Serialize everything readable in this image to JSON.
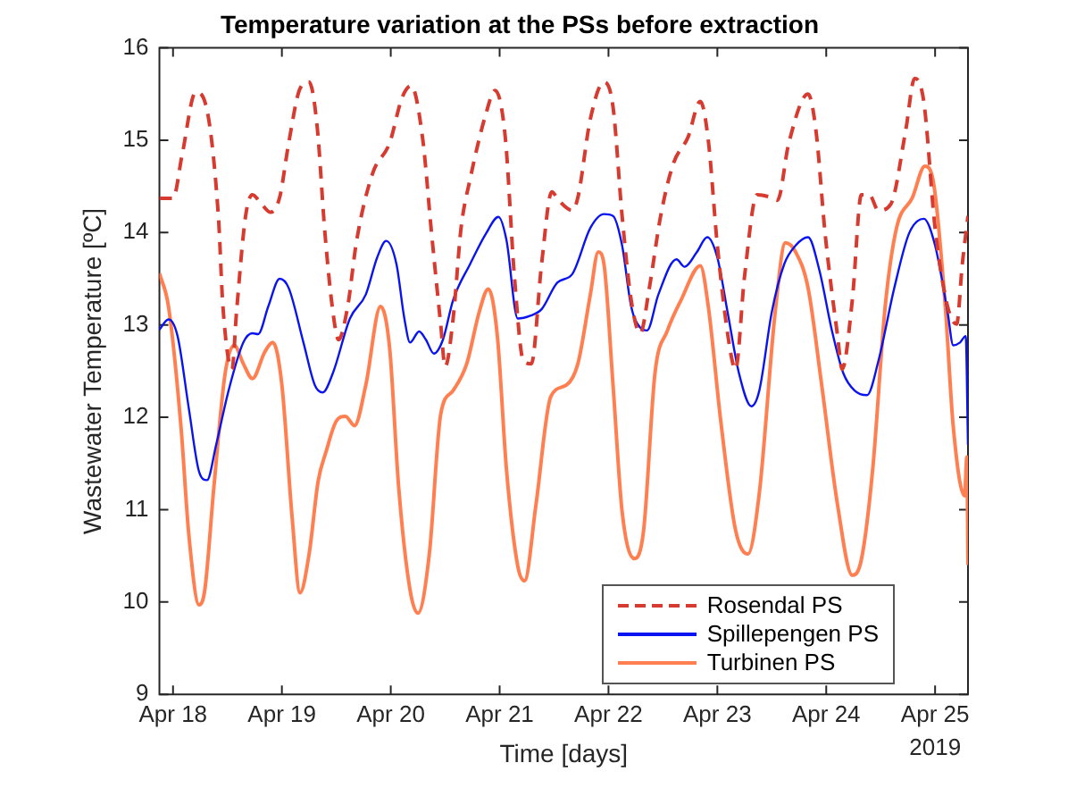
{
  "chart_data": {
    "type": "line",
    "title": "Temperature variation at the PSs before extraction",
    "xlabel": "Time [days]",
    "ylabel": "Wastewater Temperature [ºC]",
    "annotations": [
      "2019"
    ],
    "xlim": [
      "2019-04-17T21:00",
      "2019-04-25T07:15"
    ],
    "xticks": [
      {
        "value": "2019-04-18",
        "label": "Apr 18"
      },
      {
        "value": "2019-04-19",
        "label": "Apr 19"
      },
      {
        "value": "2019-04-20",
        "label": "Apr 20"
      },
      {
        "value": "2019-04-21",
        "label": "Apr 21"
      },
      {
        "value": "2019-04-22",
        "label": "Apr 22"
      },
      {
        "value": "2019-04-23",
        "label": "Apr 23"
      },
      {
        "value": "2019-04-24",
        "label": "Apr 24"
      },
      {
        "value": "2019-04-25",
        "label": "Apr 25"
      }
    ],
    "ylim": [
      9,
      16
    ],
    "yticks": [
      9,
      10,
      11,
      12,
      13,
      14,
      15,
      16
    ],
    "grid": false,
    "legend": "bottom right",
    "marker": "none",
    "series": [
      {
        "name": "Rosendal PS",
        "color": "#d73a2f",
        "line_style": "dashed",
        "x": [
          "2019-04-17T21:00",
          "2019-04-18T00:00",
          "2019-04-18T02:00",
          "2019-04-18T05:00",
          "2019-04-18T07:00",
          "2019-04-18T10:00",
          "2019-04-18T11:00",
          "2019-04-18T13:00",
          "2019-04-18T14:00",
          "2019-04-18T16:00",
          "2019-04-18T17:30",
          "2019-04-18T19:30",
          "2019-04-18T21:30",
          "2019-04-18T23:30",
          "2019-04-19T01:30",
          "2019-04-19T04:00",
          "2019-04-19T06:00",
          "2019-04-19T07:45",
          "2019-04-19T09:30",
          "2019-04-19T11:15",
          "2019-04-19T12:30",
          "2019-04-19T14:30",
          "2019-04-19T16:30",
          "2019-04-19T20:00",
          "2019-04-19T23:45",
          "2019-04-20T02:30",
          "2019-04-20T04:30",
          "2019-04-20T07:00",
          "2019-04-20T09:00",
          "2019-04-20T11:00",
          "2019-04-20T12:00",
          "2019-04-20T13:45",
          "2019-04-20T15:30",
          "2019-04-20T17:30",
          "2019-04-20T21:00",
          "2019-04-20T23:00",
          "2019-04-21T01:15",
          "2019-04-21T03:15",
          "2019-04-21T05:15",
          "2019-04-21T07:00",
          "2019-04-21T09:15",
          "2019-04-21T11:30",
          "2019-04-21T13:00",
          "2019-04-21T16:00",
          "2019-04-21T17:15",
          "2019-04-21T20:00",
          "2019-04-21T23:00",
          "2019-04-22T01:00",
          "2019-04-22T03:00",
          "2019-04-22T05:00",
          "2019-04-22T07:00",
          "2019-04-22T09:00",
          "2019-04-22T11:30",
          "2019-04-22T14:15",
          "2019-04-22T17:30",
          "2019-04-22T20:15",
          "2019-04-22T22:00",
          "2019-04-23T00:00",
          "2019-04-23T02:45",
          "2019-04-23T04:00",
          "2019-04-23T06:00",
          "2019-04-23T08:45",
          "2019-04-23T11:15",
          "2019-04-23T13:15",
          "2019-04-23T15:45",
          "2019-04-23T20:00",
          "2019-04-23T21:45",
          "2019-04-23T23:45",
          "2019-04-24T02:30",
          "2019-04-24T03:30",
          "2019-04-24T05:45",
          "2019-04-24T07:45",
          "2019-04-24T09:30",
          "2019-04-24T11:30",
          "2019-04-24T14:15",
          "2019-04-24T17:30",
          "2019-04-24T19:30",
          "2019-04-24T21:30",
          "2019-04-25T00:00",
          "2019-04-25T02:45",
          "2019-04-25T04:45",
          "2019-04-25T06:00",
          "2019-04-25T07:15"
        ],
        "values": [
          14.37,
          14.37,
          14.84,
          15.52,
          15.42,
          14.18,
          13.2,
          12.52,
          13.14,
          14.18,
          14.41,
          14.31,
          14.22,
          14.38,
          14.97,
          15.56,
          15.63,
          15.16,
          13.99,
          13.14,
          12.84,
          13.2,
          13.92,
          14.64,
          14.97,
          15.46,
          15.59,
          15.03,
          13.99,
          13.01,
          12.55,
          13.07,
          14.05,
          14.58,
          15.29,
          15.54,
          15.03,
          13.53,
          12.61,
          12.58,
          13.66,
          14.44,
          14.35,
          14.24,
          14.38,
          15.23,
          15.63,
          15.36,
          14.18,
          13.27,
          12.91,
          13.4,
          14.18,
          14.74,
          15.03,
          15.42,
          15.0,
          13.86,
          12.75,
          12.52,
          13.53,
          14.41,
          14.39,
          14.35,
          14.97,
          15.5,
          15.1,
          13.99,
          12.88,
          12.52,
          13.27,
          14.41,
          14.41,
          14.24,
          14.31,
          15.1,
          15.67,
          15.42,
          14.05,
          13.2,
          13.01,
          13.66,
          14.18
        ]
      },
      {
        "name": "Spillepengen PS",
        "color": "#0a14f0",
        "line_style": "solid",
        "x": [
          "2019-04-17T21:00",
          "2019-04-17T23:00",
          "2019-04-18T01:00",
          "2019-04-18T03:30",
          "2019-04-18T05:45",
          "2019-04-18T07:30",
          "2019-04-18T09:30",
          "2019-04-18T12:15",
          "2019-04-18T15:30",
          "2019-04-18T17:30",
          "2019-04-18T18:45",
          "2019-04-18T21:00",
          "2019-04-18T23:30",
          "2019-04-19T01:30",
          "2019-04-19T04:45",
          "2019-04-19T07:15",
          "2019-04-19T09:00",
          "2019-04-19T11:15",
          "2019-04-19T15:00",
          "2019-04-19T18:30",
          "2019-04-19T21:00",
          "2019-04-19T23:00",
          "2019-04-20T01:15",
          "2019-04-20T03:00",
          "2019-04-20T04:15",
          "2019-04-20T06:15",
          "2019-04-20T07:45",
          "2019-04-20T09:30",
          "2019-04-20T11:30",
          "2019-04-20T13:45",
          "2019-04-20T17:30",
          "2019-04-20T21:00",
          "2019-04-20T23:45",
          "2019-04-21T01:30",
          "2019-04-21T04:00",
          "2019-04-21T06:45",
          "2019-04-21T09:15",
          "2019-04-21T12:45",
          "2019-04-21T16:00",
          "2019-04-21T20:00",
          "2019-04-21T23:00",
          "2019-04-22T01:00",
          "2019-04-22T03:00",
          "2019-04-22T05:00",
          "2019-04-22T07:00",
          "2019-04-22T08:30",
          "2019-04-22T11:00",
          "2019-04-22T15:00",
          "2019-04-22T16:45",
          "2019-04-22T19:30",
          "2019-04-22T21:45",
          "2019-04-23T00:00",
          "2019-04-23T02:15",
          "2019-04-23T04:45",
          "2019-04-23T07:30",
          "2019-04-23T09:15",
          "2019-04-23T12:00",
          "2019-04-23T14:45",
          "2019-04-23T17:15",
          "2019-04-23T20:00",
          "2019-04-23T22:30",
          "2019-04-24T01:15",
          "2019-04-24T03:45",
          "2019-04-24T06:15",
          "2019-04-24T09:00",
          "2019-04-24T11:30",
          "2019-04-24T15:00",
          "2019-04-24T18:15",
          "2019-04-24T21:30",
          "2019-04-25T00:00",
          "2019-04-25T02:45",
          "2019-04-25T04:00",
          "2019-04-25T05:30",
          "2019-04-25T06:45",
          "2019-04-25T07:15"
        ],
        "values": [
          12.95,
          13.06,
          12.88,
          12.09,
          11.41,
          11.32,
          11.7,
          12.29,
          12.81,
          12.91,
          12.9,
          13.2,
          13.5,
          13.4,
          12.81,
          12.35,
          12.27,
          12.48,
          13.07,
          13.33,
          13.73,
          13.91,
          13.66,
          13.07,
          12.81,
          12.93,
          12.84,
          12.69,
          12.84,
          13.27,
          13.66,
          13.99,
          14.17,
          13.92,
          13.07,
          13.1,
          13.17,
          13.46,
          13.55,
          14.05,
          14.2,
          14.18,
          13.86,
          13.2,
          12.97,
          12.94,
          13.33,
          13.71,
          13.63,
          13.79,
          13.95,
          13.73,
          13.14,
          12.48,
          12.12,
          12.29,
          13.14,
          13.66,
          13.86,
          13.95,
          13.59,
          12.94,
          12.48,
          12.29,
          12.24,
          12.61,
          13.4,
          13.99,
          14.15,
          13.86,
          13.14,
          12.78,
          12.81,
          12.88,
          11.7
        ]
      },
      {
        "name": "Turbinen PS",
        "color": "#ff7f50",
        "line_style": "solid",
        "x": [
          "2019-04-17T21:00",
          "2019-04-17T23:00",
          "2019-04-18T01:45",
          "2019-04-18T03:30",
          "2019-04-18T05:45",
          "2019-04-18T07:00",
          "2019-04-18T09:00",
          "2019-04-18T11:30",
          "2019-04-18T13:30",
          "2019-04-18T15:30",
          "2019-04-18T17:30",
          "2019-04-18T20:15",
          "2019-04-18T22:00",
          "2019-04-19T00:00",
          "2019-04-19T02:15",
          "2019-04-19T04:00",
          "2019-04-19T06:00",
          "2019-04-19T08:00",
          "2019-04-19T09:45",
          "2019-04-19T12:00",
          "2019-04-19T14:00",
          "2019-04-19T16:00",
          "2019-04-19T18:30",
          "2019-04-19T21:45",
          "2019-04-19T23:45",
          "2019-04-20T01:45",
          "2019-04-20T04:15",
          "2019-04-20T06:00",
          "2019-04-20T08:30",
          "2019-04-20T11:00",
          "2019-04-20T13:45",
          "2019-04-20T16:45",
          "2019-04-20T19:30",
          "2019-04-20T21:30",
          "2019-04-20T23:30",
          "2019-04-21T01:30",
          "2019-04-21T04:00",
          "2019-04-21T05:30",
          "2019-04-21T08:00",
          "2019-04-21T11:15",
          "2019-04-21T14:45",
          "2019-04-21T17:15",
          "2019-04-21T20:00",
          "2019-04-21T21:45",
          "2019-04-21T23:00",
          "2019-04-22T01:00",
          "2019-04-22T03:00",
          "2019-04-22T05:45",
          "2019-04-22T07:45",
          "2019-04-22T10:15",
          "2019-04-22T13:00",
          "2019-04-22T16:00",
          "2019-04-22T20:15",
          "2019-04-22T22:00",
          "2019-04-23T00:45",
          "2019-04-23T04:00",
          "2019-04-23T06:45",
          "2019-04-23T09:15",
          "2019-04-23T12:45",
          "2019-04-23T15:00",
          "2019-04-23T17:15",
          "2019-04-23T20:00",
          "2019-04-23T23:00",
          "2019-04-24T02:30",
          "2019-04-24T05:45",
          "2019-04-24T07:45",
          "2019-04-24T10:15",
          "2019-04-24T13:00",
          "2019-04-24T15:30",
          "2019-04-24T19:00",
          "2019-04-24T21:45",
          "2019-04-24T23:45",
          "2019-04-25T02:15",
          "2019-04-25T04:00",
          "2019-04-25T06:30",
          "2019-04-25T07:00",
          "2019-04-25T07:15"
        ],
        "values": [
          13.56,
          13.2,
          11.9,
          10.72,
          9.97,
          10.13,
          11.24,
          12.48,
          12.78,
          12.58,
          12.42,
          12.71,
          12.81,
          12.35,
          10.92,
          10.1,
          10.52,
          11.31,
          11.63,
          11.96,
          12.01,
          11.91,
          12.35,
          13.2,
          12.75,
          11.24,
          10.13,
          9.88,
          10.52,
          12.03,
          12.29,
          12.58,
          13.14,
          13.39,
          12.88,
          11.44,
          10.39,
          10.23,
          11.05,
          12.22,
          12.35,
          12.58,
          13.33,
          13.79,
          13.66,
          12.35,
          10.98,
          10.47,
          10.78,
          12.48,
          12.94,
          13.27,
          13.64,
          13.2,
          11.96,
          10.78,
          10.52,
          11.18,
          13.14,
          13.89,
          13.79,
          13.4,
          12.35,
          11.05,
          10.29,
          10.46,
          11.44,
          13.2,
          14.05,
          14.38,
          14.72,
          14.51,
          13.2,
          11.9,
          11.15,
          11.57,
          10.4
        ]
      }
    ]
  }
}
